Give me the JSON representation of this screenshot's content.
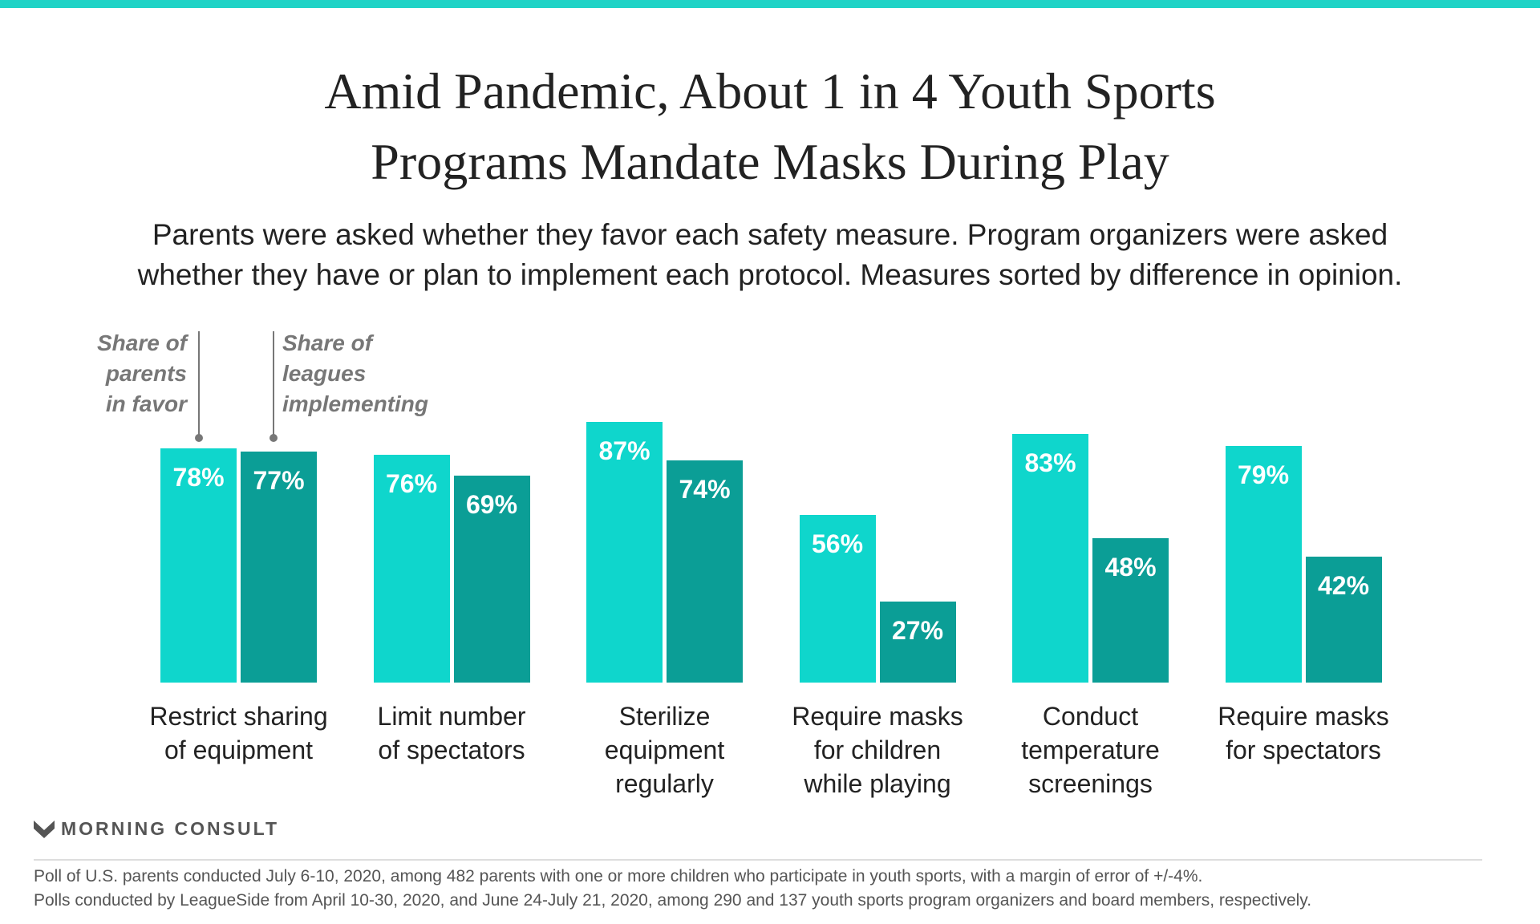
{
  "title_lines": [
    "Amid Pandemic, About 1 in 4 Youth Sports",
    "Programs Mandate Masks During Play"
  ],
  "subtitle_lines": [
    "Parents were asked whether they favor each safety measure. Program organizers were asked",
    "whether they have or plan to implement each protocol. Measures sorted by difference in opinion."
  ],
  "colors": {
    "parents": "#0fd6cc",
    "leagues": "#0b9e96",
    "accent": "#1fd3c6"
  },
  "chart_data": {
    "type": "bar",
    "title": "Amid Pandemic, About 1 in 4 Youth Sports Programs Mandate Masks During Play",
    "categories": [
      [
        "Restrict sharing",
        "of equipment"
      ],
      [
        "Limit number",
        "of spectators"
      ],
      [
        "Sterilize",
        "equipment",
        "regularly"
      ],
      [
        "Require masks",
        "for children",
        "while playing"
      ],
      [
        "Conduct",
        "temperature",
        "screenings"
      ],
      [
        "Require masks",
        "for spectators"
      ]
    ],
    "series": [
      {
        "name": "Share of parents in favor",
        "values": [
          78,
          76,
          87,
          56,
          83,
          79
        ]
      },
      {
        "name": "Share of leagues implementing",
        "values": [
          77,
          69,
          74,
          27,
          48,
          42
        ]
      }
    ],
    "ylim": [
      0,
      100
    ],
    "grid": false,
    "value_suffix": "%",
    "legend_annotations": [
      [
        "Share of",
        "parents",
        "in favor"
      ],
      [
        "Share of",
        "leagues",
        "implementing"
      ]
    ]
  },
  "brand": "MORNING CONSULT",
  "footer_lines": [
    "Poll of U.S. parents conducted July 6-10, 2020, among 482 parents with one or more children who participate in youth sports, with a margin of error of +/-4%.",
    "Polls conducted by LeagueSide from April 10-30, 2020, and June 24-July 21, 2020, among 290 and 137 youth sports program organizers and board members, respectively."
  ]
}
